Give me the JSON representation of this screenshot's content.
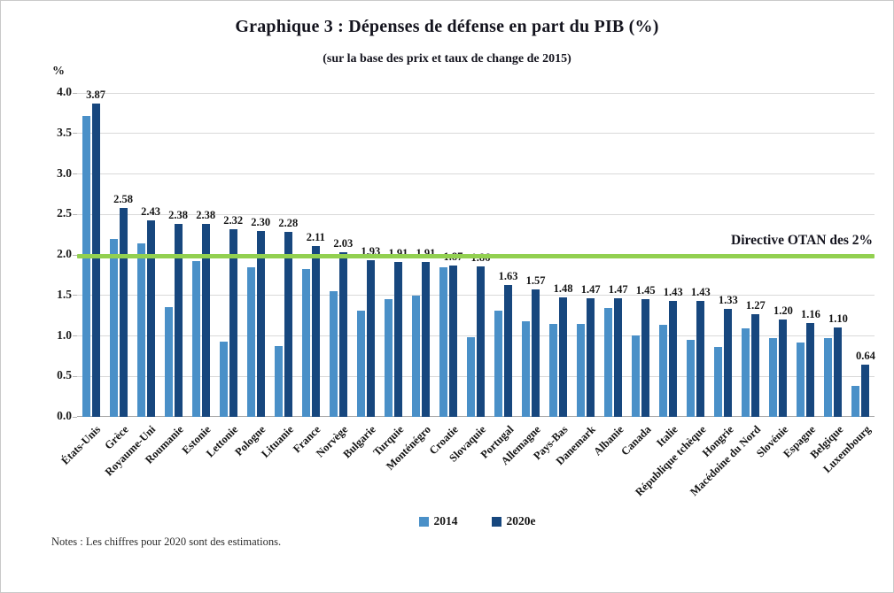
{
  "figure": {
    "title": "Graphique 3 : Dépenses de défense en part du PIB (%)",
    "subtitle": "(sur la base des prix et taux de change de 2015)",
    "y_unit_label": "%",
    "target_line_label": "Directive OTAN des 2%",
    "notes": "Notes : Les chiffres pour 2020 sont des estimations.",
    "colors": {
      "series_2014": "#4a90c8",
      "series_2020": "#17477e",
      "target_line": "#92d050",
      "gridline": "#d9d9d9",
      "axis_line": "#a6a6a6"
    }
  },
  "legend": {
    "items": [
      {
        "label": "2014",
        "color": "#4a90c8"
      },
      {
        "label": "2020e",
        "color": "#17477e"
      }
    ]
  },
  "chart_data": {
    "type": "bar",
    "title": "Graphique 3 : Dépenses de défense en part du PIB (%)",
    "subtitle": "(sur la base des prix et taux de change de 2015)",
    "xlabel": "",
    "ylabel": "%",
    "ylim": [
      0,
      4
    ],
    "ytick_step": 0.5,
    "yticks": [
      "0.0",
      "0.5",
      "1.0",
      "1.5",
      "2.0",
      "2.5",
      "3.0",
      "3.5",
      "4.0"
    ],
    "grid": true,
    "legend_position": "bottom",
    "reference_line": {
      "value": 2.0,
      "label": "Directive OTAN des 2%",
      "color": "#92d050"
    },
    "categories": [
      "États-Unis",
      "Grèce",
      "Royaume-Uni",
      "Roumanie",
      "Estonie",
      "Lettonie",
      "Pologne",
      "Lituanie",
      "France",
      "Norvège",
      "Bulgarie",
      "Turquie",
      "Monténégro",
      "Croatie",
      "Slovaquie",
      "Portugal",
      "Allemagne",
      "Pays-Bas",
      "Danemark",
      "Albanie",
      "Canada",
      "Italie",
      "République tchèque",
      "Hongrie",
      "Macédoine du Nord",
      "Slovénie",
      "Espagne",
      "Belgique",
      "Luxembourg"
    ],
    "series": [
      {
        "name": "2014",
        "color": "#4a90c8",
        "values": [
          3.72,
          2.2,
          2.14,
          1.35,
          1.92,
          0.93,
          1.85,
          0.87,
          1.82,
          1.55,
          1.31,
          1.45,
          1.5,
          1.85,
          0.98,
          1.31,
          1.18,
          1.15,
          1.15,
          1.34,
          1.01,
          1.14,
          0.95,
          0.86,
          1.09,
          0.97,
          0.92,
          0.97,
          0.38
        ]
      },
      {
        "name": "2020e",
        "color": "#17477e",
        "values": [
          3.87,
          2.58,
          2.43,
          2.38,
          2.38,
          2.32,
          2.3,
          2.28,
          2.11,
          2.03,
          1.93,
          1.91,
          1.91,
          1.87,
          1.86,
          1.63,
          1.57,
          1.48,
          1.47,
          1.47,
          1.45,
          1.43,
          1.43,
          1.33,
          1.27,
          1.2,
          1.16,
          1.1,
          0.64
        ],
        "data_labels": [
          "3.87",
          "2.58",
          "2.43",
          "2.38",
          "2.38",
          "2.32",
          "2.30",
          "2.28",
          "2.11",
          "2.03",
          "1.93",
          "1.91",
          "1.91",
          "1.87",
          "1.86",
          "1.63",
          "1.57",
          "1.48",
          "1.47",
          "1.47",
          "1.45",
          "1.43",
          "1.43",
          "1.33",
          "1.27",
          "1.20",
          "1.16",
          "1.10",
          "0.64"
        ]
      }
    ]
  }
}
